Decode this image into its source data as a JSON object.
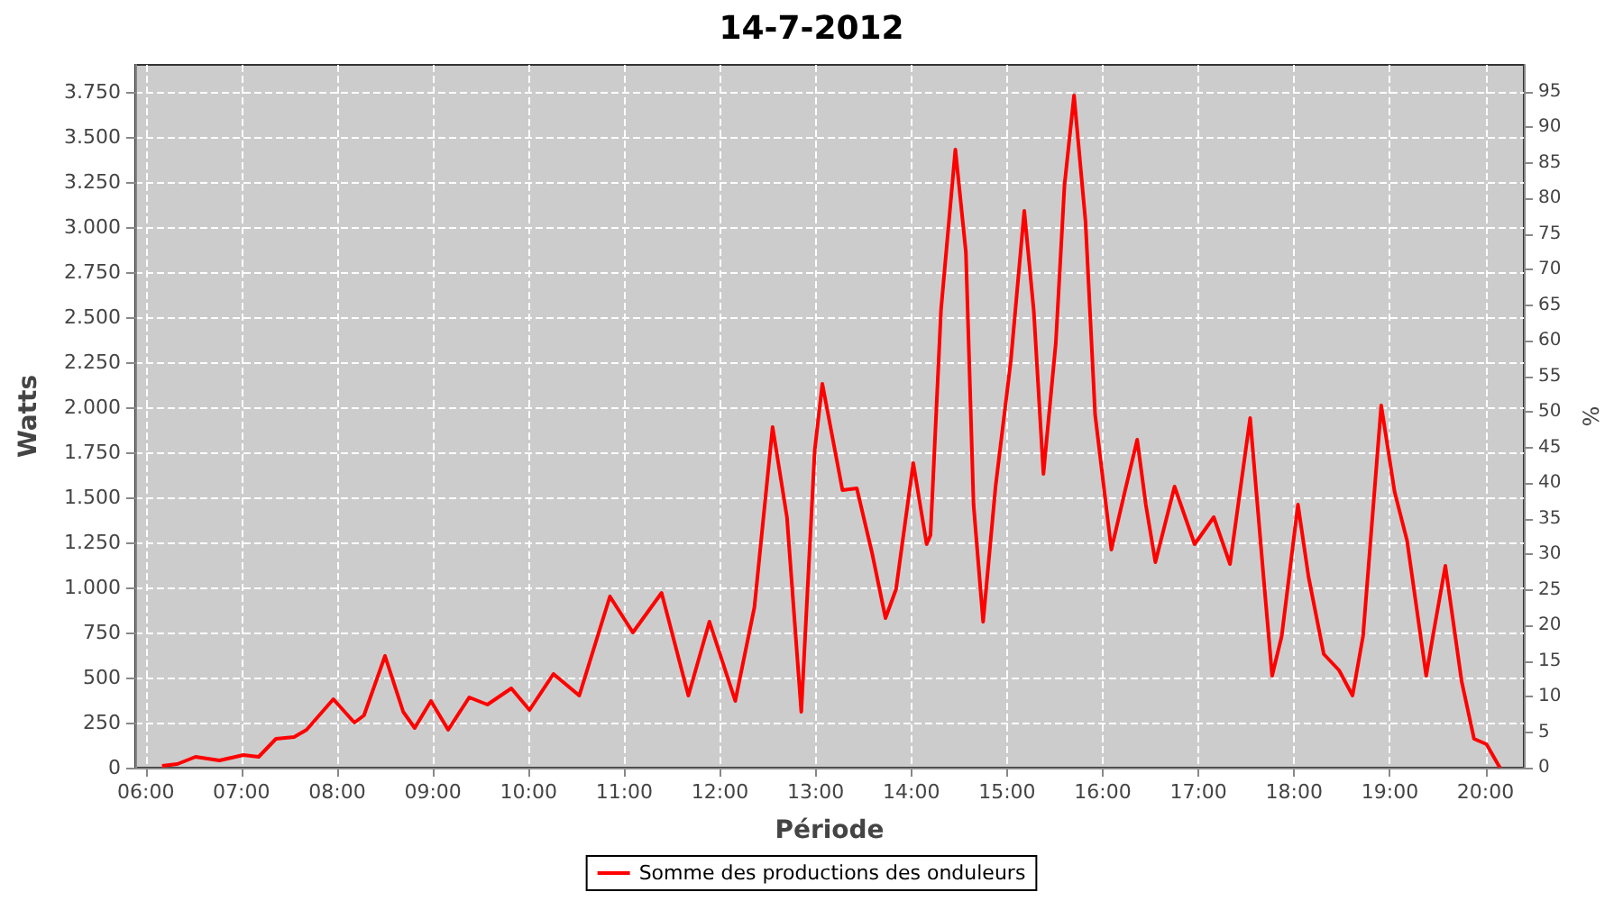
{
  "chart_data": {
    "type": "line",
    "title": "14-7-2012",
    "xlabel": "Période",
    "ylabel": "Watts",
    "y2label": "%",
    "x": [
      6.17,
      6.33,
      6.52,
      6.77,
      7.02,
      7.18,
      7.36,
      7.55,
      7.68,
      7.96,
      8.18,
      8.28,
      8.5,
      8.69,
      8.81,
      8.98,
      9.16,
      9.38,
      9.57,
      9.82,
      10.01,
      10.26,
      10.53,
      10.85,
      11.09,
      11.39,
      11.67,
      11.89,
      12.16,
      12.36,
      12.55,
      12.7,
      12.85,
      12.99,
      13.07,
      13.28,
      13.43,
      13.59,
      13.73,
      13.84,
      14.02,
      14.16,
      14.2,
      14.31,
      14.46,
      14.57,
      14.65,
      14.75,
      14.88,
      15.04,
      15.18,
      15.28,
      15.38,
      15.51,
      15.6,
      15.7,
      15.82,
      15.92,
      16.09,
      16.23,
      16.36,
      16.45,
      16.55,
      16.75,
      16.96,
      17.16,
      17.33,
      17.54,
      17.68,
      17.77,
      17.87,
      18.04,
      18.15,
      18.31,
      18.47,
      18.61,
      18.72,
      18.91,
      19.05,
      19.18,
      19.38,
      19.45,
      19.58,
      19.75,
      19.88,
      20.01,
      20.15
    ],
    "series": [
      {
        "name": "Somme des productions des onduleurs",
        "color": "#ff0000",
        "values": [
          10,
          20,
          60,
          40,
          70,
          60,
          160,
          170,
          210,
          380,
          250,
          290,
          620,
          310,
          220,
          370,
          210,
          390,
          350,
          440,
          320,
          520,
          400,
          950,
          750,
          970,
          400,
          810,
          370,
          890,
          1890,
          1390,
          310,
          1760,
          2130,
          1540,
          1550,
          1190,
          830,
          990,
          1690,
          1240,
          1290,
          2540,
          3430,
          2860,
          1460,
          810,
          1560,
          2260,
          3090,
          2530,
          1630,
          2360,
          3230,
          3730,
          3030,
          1960,
          1210,
          1530,
          1820,
          1460,
          1140,
          1560,
          1240,
          1390,
          1130,
          1940,
          1060,
          510,
          730,
          1460,
          1060,
          630,
          540,
          400,
          730,
          2010,
          1530,
          1260,
          510,
          730,
          1120,
          480,
          160,
          130,
          0
        ]
      }
    ],
    "xlim": [
      5.89,
      20.4
    ],
    "xticks": [
      {
        "value": 6,
        "label": "06:00"
      },
      {
        "value": 7,
        "label": "07:00"
      },
      {
        "value": 8,
        "label": "08:00"
      },
      {
        "value": 9,
        "label": "09:00"
      },
      {
        "value": 10,
        "label": "10:00"
      },
      {
        "value": 11,
        "label": "11:00"
      },
      {
        "value": 12,
        "label": "12:00"
      },
      {
        "value": 13,
        "label": "13:00"
      },
      {
        "value": 14,
        "label": "14:00"
      },
      {
        "value": 15,
        "label": "15:00"
      },
      {
        "value": 16,
        "label": "16:00"
      },
      {
        "value": 17,
        "label": "17:00"
      },
      {
        "value": 18,
        "label": "18:00"
      },
      {
        "value": 19,
        "label": "19:00"
      },
      {
        "value": 20,
        "label": "20:00"
      }
    ],
    "ylim": [
      0,
      3900
    ],
    "yticks": [
      0,
      250,
      500,
      750,
      {
        "value": 1000,
        "label": "1.000"
      },
      {
        "value": 1250,
        "label": "1.250"
      },
      {
        "value": 1500,
        "label": "1.500"
      },
      {
        "value": 1750,
        "label": "1.750"
      },
      {
        "value": 2000,
        "label": "2.000"
      },
      {
        "value": 2250,
        "label": "2.250"
      },
      {
        "value": 2500,
        "label": "2.500"
      },
      {
        "value": 2750,
        "label": "2.750"
      },
      {
        "value": 3000,
        "label": "3.000"
      },
      {
        "value": 3250,
        "label": "3.250"
      },
      {
        "value": 3500,
        "label": "3.500"
      },
      {
        "value": 3750,
        "label": "3.750"
      }
    ],
    "y2lim": [
      0,
      98.8
    ],
    "y2ticks": [
      0,
      5,
      10,
      15,
      20,
      25,
      30,
      35,
      40,
      45,
      50,
      55,
      60,
      65,
      70,
      75,
      80,
      85,
      90,
      95
    ],
    "grid": true,
    "legend": "bottom",
    "marker": "none",
    "line_style": "solid"
  }
}
